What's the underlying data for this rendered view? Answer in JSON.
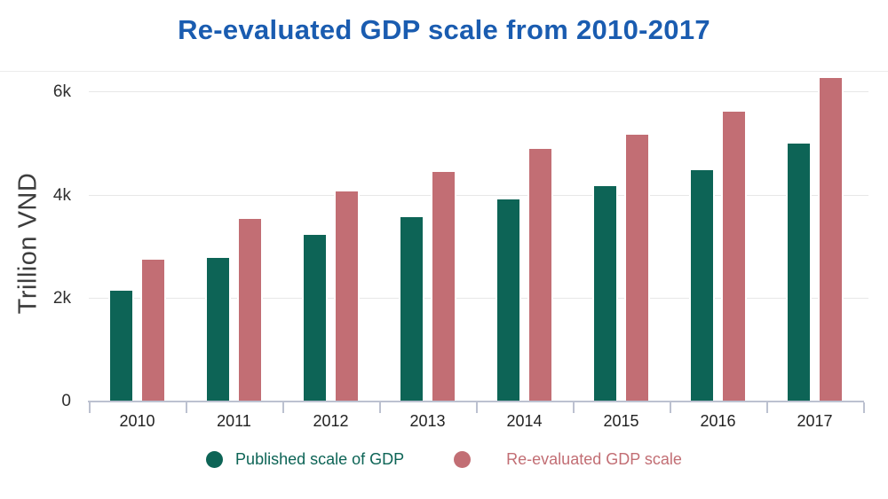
{
  "title": "Re-evaluated GDP scale from 2010-2017",
  "colors": {
    "title": "#1a5cb0",
    "published": "#0d6456",
    "re_evaluated": "#c26e74",
    "axis_line": "#bcc1d0",
    "gridline": "#e7e7e7",
    "tick_text": "#2f2f2f"
  },
  "chart_data": {
    "type": "bar",
    "title": "Re-evaluated GDP scale from 2010-2017",
    "categories": [
      "2010",
      "2011",
      "2012",
      "2013",
      "2014",
      "2015",
      "2016",
      "2017"
    ],
    "series": [
      {
        "name": "Published scale of GDP",
        "color": "#0d6456",
        "values": [
          2160,
          2780,
          3240,
          3580,
          3930,
          4190,
          4500,
          5000
        ]
      },
      {
        "name": "Re-evaluated GDP scale",
        "color": "#c26e74",
        "values": [
          2750,
          3540,
          4080,
          4450,
          4910,
          5180,
          5630,
          6280
        ]
      }
    ],
    "xlabel": "",
    "ylabel": "Trillion VND",
    "yticks": [
      {
        "value": 0,
        "label": "0"
      },
      {
        "value": 2000,
        "label": "2k"
      },
      {
        "value": 4000,
        "label": "4k"
      },
      {
        "value": 6000,
        "label": "6k"
      }
    ],
    "ylim": [
      0,
      6333
    ],
    "grid": true,
    "legend_position": "bottom"
  }
}
